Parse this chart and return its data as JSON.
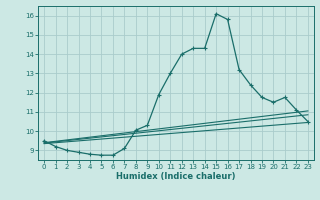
{
  "background_color": "#cce8e4",
  "grid_color": "#aacccc",
  "line_color": "#1a6e6a",
  "xlabel": "Humidex (Indice chaleur)",
  "xlim": [
    -0.5,
    23.5
  ],
  "ylim": [
    8.5,
    16.5
  ],
  "yticks": [
    9,
    10,
    11,
    12,
    13,
    14,
    15,
    16
  ],
  "xticks": [
    0,
    1,
    2,
    3,
    4,
    5,
    6,
    7,
    8,
    9,
    10,
    11,
    12,
    13,
    14,
    15,
    16,
    17,
    18,
    19,
    20,
    21,
    22,
    23
  ],
  "line1_x": [
    0,
    1,
    2,
    3,
    4,
    5,
    6,
    7,
    8,
    9,
    10,
    11,
    12,
    13,
    14,
    15,
    16,
    17,
    18,
    19,
    20,
    21,
    22,
    23
  ],
  "line1_y": [
    9.5,
    9.2,
    9.0,
    8.9,
    8.8,
    8.75,
    8.75,
    9.1,
    10.05,
    10.3,
    11.9,
    13.0,
    14.0,
    14.3,
    14.3,
    16.1,
    15.8,
    13.2,
    12.4,
    11.75,
    11.5,
    11.75,
    11.1,
    10.5
  ],
  "line2_x": [
    0,
    23
  ],
  "line2_y": [
    9.4,
    11.05
  ],
  "line3_x": [
    0,
    23
  ],
  "line3_y": [
    9.35,
    10.45
  ],
  "line4_x": [
    0,
    23
  ],
  "line4_y": [
    9.38,
    10.85
  ]
}
